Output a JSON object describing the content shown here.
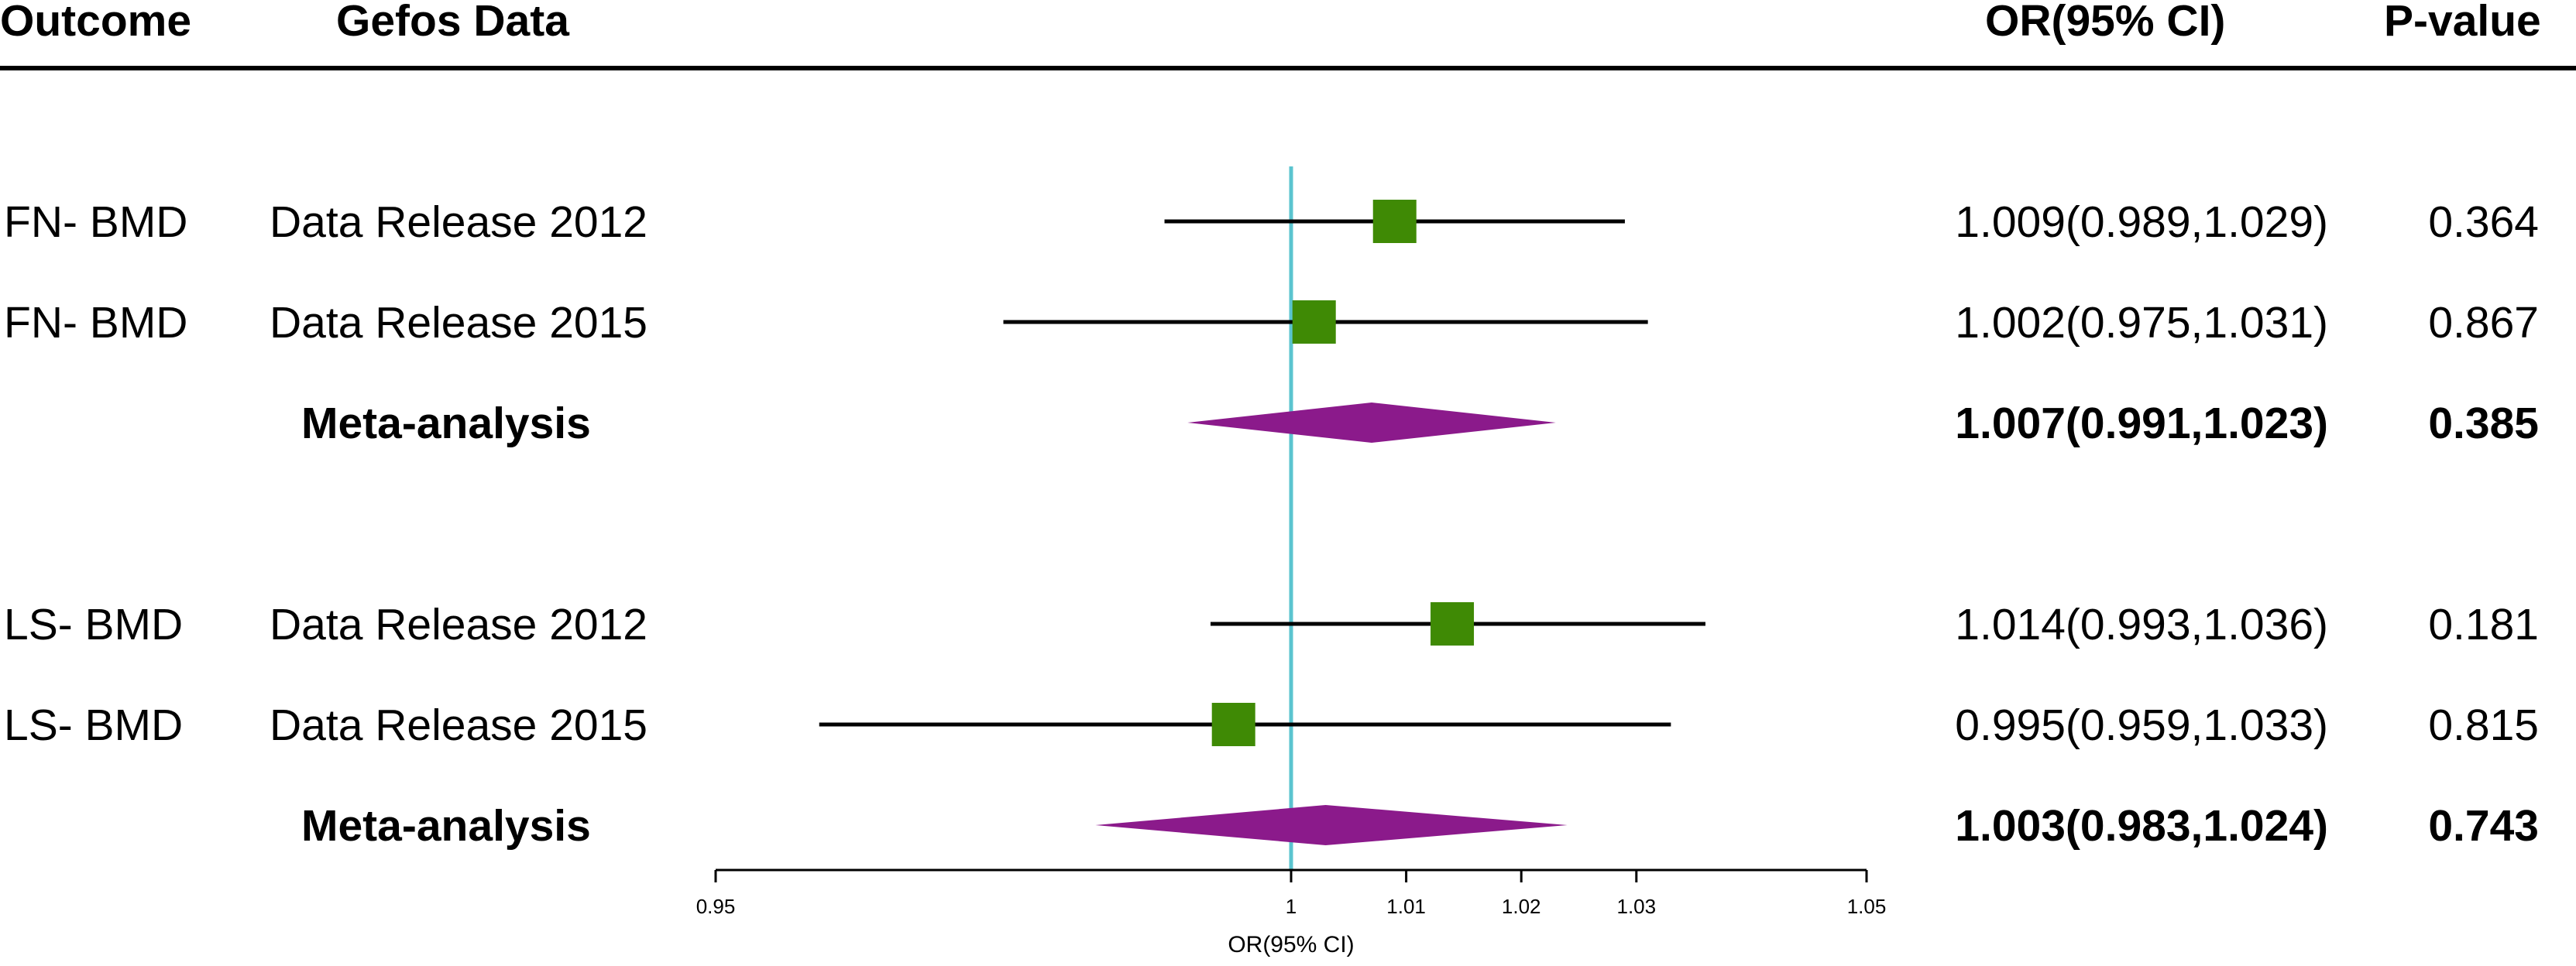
{
  "headers": {
    "outcome": "Outcome",
    "data": "Gefos Data",
    "or": "OR(95% CI)",
    "p": "P-value"
  },
  "chart_data": {
    "type": "forest",
    "xlabel": "OR(95% CI)",
    "xlim": [
      0.95,
      1.05
    ],
    "ticks": [
      {
        "value": 0.95,
        "label": "0.95"
      },
      {
        "value": 1.0,
        "label": "1"
      },
      {
        "value": 1.01,
        "label": "1.01"
      },
      {
        "value": 1.02,
        "label": "1.02"
      },
      {
        "value": 1.03,
        "label": "1.03"
      },
      {
        "value": 1.05,
        "label": "1.05"
      }
    ],
    "reference_line": 1.0,
    "rows": [
      {
        "kind": "study",
        "outcome": "FN- BMD",
        "data": "Data Release 2012",
        "or": 1.009,
        "lo": 0.989,
        "hi": 1.029,
        "or_text": "1.009(0.989,1.029)",
        "p": "0.364"
      },
      {
        "kind": "study",
        "outcome": "FN- BMD",
        "data": "Data Release 2015",
        "or": 1.002,
        "lo": 0.975,
        "hi": 1.031,
        "or_text": "1.002(0.975,1.031)",
        "p": "0.867"
      },
      {
        "kind": "meta",
        "outcome": "",
        "data": "Meta-analysis",
        "or": 1.007,
        "lo": 0.991,
        "hi": 1.023,
        "or_text": "1.007(0.991,1.023)",
        "p": "0.385"
      },
      {
        "kind": "blank"
      },
      {
        "kind": "study",
        "outcome": "LS- BMD",
        "data": "Data Release 2012",
        "or": 1.014,
        "lo": 0.993,
        "hi": 1.036,
        "or_text": "1.014(0.993,1.036)",
        "p": "0.181"
      },
      {
        "kind": "study",
        "outcome": "LS- BMD",
        "data": "Data Release 2015",
        "or": 0.995,
        "lo": 0.959,
        "hi": 1.033,
        "or_text": "0.995(0.959,1.033)",
        "p": "0.815"
      },
      {
        "kind": "meta",
        "outcome": "",
        "data": "Meta-analysis",
        "or": 1.003,
        "lo": 0.983,
        "hi": 1.024,
        "or_text": "1.003(0.983,1.024)",
        "p": "0.743"
      }
    ],
    "colors": {
      "study_marker": "#3f8a05",
      "meta_marker": "#8b1a8b",
      "reference_line": "#5bc4cf",
      "ci_line": "#000000",
      "axis": "#000000"
    }
  }
}
